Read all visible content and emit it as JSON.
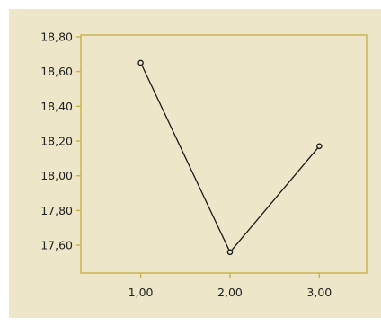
{
  "chart_data": {
    "type": "line",
    "title": "",
    "xlabel": "",
    "ylabel": "",
    "x": [
      1.0,
      2.0,
      3.0
    ],
    "x_tick_labels": [
      "1,00",
      "2,00",
      "3,00"
    ],
    "x_ticks": [
      1.0,
      2.0,
      3.0
    ],
    "xlim": [
      0.33,
      3.53
    ],
    "y_tick_labels": [
      "17,60",
      "17,80",
      "18,00",
      "18,20",
      "18,40",
      "18,60",
      "18,80"
    ],
    "y_ticks": [
      17.6,
      17.8,
      18.0,
      18.2,
      18.4,
      18.6,
      18.8
    ],
    "ylim": [
      17.44,
      18.81
    ],
    "series": [
      {
        "values": [
          18.65,
          17.56,
          18.17
        ]
      }
    ],
    "grid": false,
    "legend": "none",
    "colors": {
      "page_background": "#ede6c8",
      "plot_background": "#ede6c8",
      "axis_frame": "#c7b34a",
      "line": "#1a1a1a",
      "marker_fill": "#ede6c8",
      "text": "#222222"
    }
  }
}
